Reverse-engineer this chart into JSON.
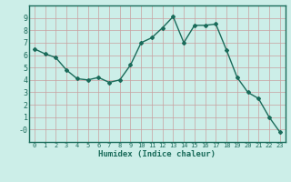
{
  "x": [
    0,
    1,
    2,
    3,
    4,
    5,
    6,
    7,
    8,
    9,
    10,
    11,
    12,
    13,
    14,
    15,
    16,
    17,
    18,
    19,
    20,
    21,
    22,
    23
  ],
  "y": [
    6.5,
    6.1,
    5.8,
    4.8,
    4.1,
    4.0,
    4.2,
    3.8,
    4.0,
    5.2,
    7.0,
    7.4,
    8.2,
    9.1,
    7.0,
    8.4,
    8.4,
    8.5,
    6.4,
    4.2,
    3.0,
    2.5,
    1.0,
    -0.2
  ],
  "xlabel": "Humidex (Indice chaleur)",
  "ylim": [
    -1,
    10
  ],
  "xlim": [
    -0.5,
    23.5
  ],
  "yticks": [
    0,
    1,
    2,
    3,
    4,
    5,
    6,
    7,
    8,
    9
  ],
  "xticks": [
    0,
    1,
    2,
    3,
    4,
    5,
    6,
    7,
    8,
    9,
    10,
    11,
    12,
    13,
    14,
    15,
    16,
    17,
    18,
    19,
    20,
    21,
    22,
    23
  ],
  "line_color": "#1a6b5a",
  "marker": "D",
  "marker_size": 2.0,
  "bg_color": "#cceee8",
  "grid_color_h": "#c8a0a0",
  "grid_color_v": "#c8a0a0",
  "spine_color": "#1a6b5a",
  "label_color": "#1a6b5a"
}
